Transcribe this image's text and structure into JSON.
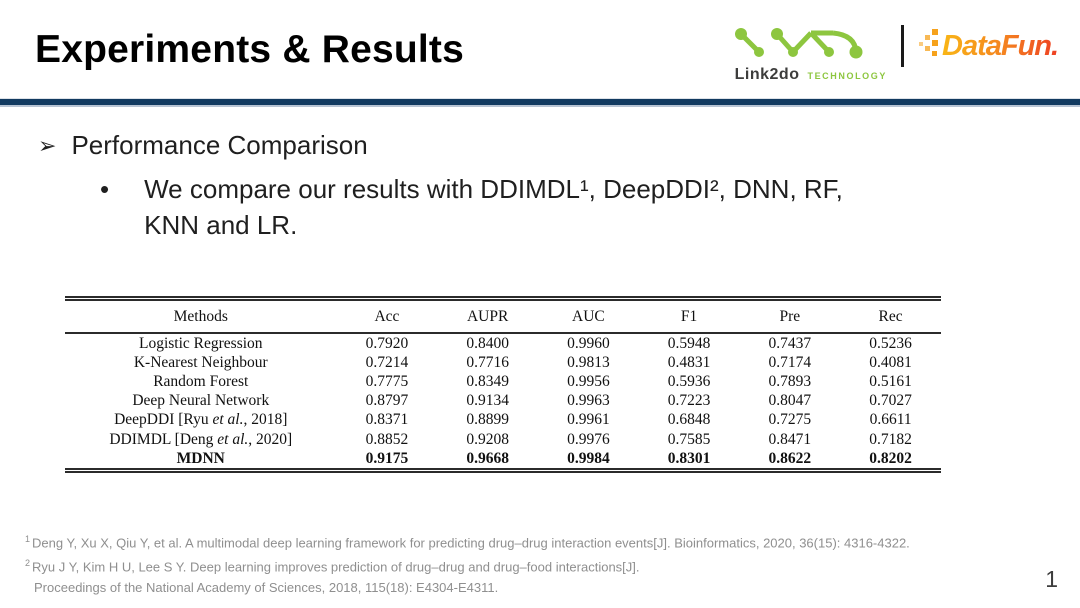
{
  "header": {
    "title": "Experiments & Results",
    "logos": {
      "link2do": {
        "name": "Link2do",
        "tagline": "TECHNOLOGY",
        "brand_color": "#8dc63f"
      },
      "separator": "|",
      "datafun": {
        "name": "DataFun.",
        "gradient_start": "#f9b616",
        "gradient_end": "#ee3f23"
      }
    },
    "divider_color": "#123a60"
  },
  "bullets": {
    "arrow_glyph": "➢",
    "dot_glyph": "•"
  },
  "content": {
    "section_title": "Performance Comparison",
    "bullet_lines": [
      "We compare our results with DDIMDL¹, DeepDDI², DNN, RF,",
      "KNN and LR."
    ]
  },
  "table": {
    "headers": [
      "Methods",
      "Acc",
      "AUPR",
      "AUC",
      "F1",
      "Pre",
      "Rec"
    ],
    "rows": [
      {
        "method": "Logistic Regression",
        "values": [
          "0.7920",
          "0.8400",
          "0.9960",
          "0.5948",
          "0.7437",
          "0.5236"
        ],
        "bold": false
      },
      {
        "method": "K-Nearest Neighbour",
        "values": [
          "0.7214",
          "0.7716",
          "0.9813",
          "0.4831",
          "0.7174",
          "0.4081"
        ],
        "bold": false
      },
      {
        "method": "Random Forest",
        "values": [
          "0.7775",
          "0.8349",
          "0.9956",
          "0.5936",
          "0.7893",
          "0.5161"
        ],
        "bold": false
      },
      {
        "method": "Deep Neural Network",
        "values": [
          "0.8797",
          "0.9134",
          "0.9963",
          "0.7223",
          "0.8047",
          "0.7027"
        ],
        "bold": false
      },
      {
        "method": "DeepDDI [Ryu et al., 2018]",
        "values": [
          "0.8371",
          "0.8899",
          "0.9961",
          "0.6848",
          "0.7275",
          "0.6611"
        ],
        "bold": false
      },
      {
        "method": "DDIMDL [Deng et al., 2020]",
        "values": [
          "0.8852",
          "0.9208",
          "0.9976",
          "0.7585",
          "0.8471",
          "0.7182"
        ],
        "bold": false
      },
      {
        "method": "MDNN",
        "values": [
          "0.9175",
          "0.9668",
          "0.9984",
          "0.8301",
          "0.8622",
          "0.8202"
        ],
        "bold": true
      }
    ]
  },
  "footnotes": [
    {
      "marker": "1",
      "text": "Deng Y, Xu X, Qiu Y, et al. A multimodal deep learning framework for predicting drug–drug interaction events[J]. Bioinformatics, 2020, 36(15): 4316-4322."
    },
    {
      "marker": "2",
      "text": "Ryu J Y, Kim H U, Lee S Y. Deep learning improves prediction of drug–drug and drug–food interactions[J]."
    },
    {
      "marker": "",
      "text": "Proceedings of the National Academy of Sciences, 2018, 115(18): E4304-E4311."
    }
  ],
  "page_number": "1"
}
